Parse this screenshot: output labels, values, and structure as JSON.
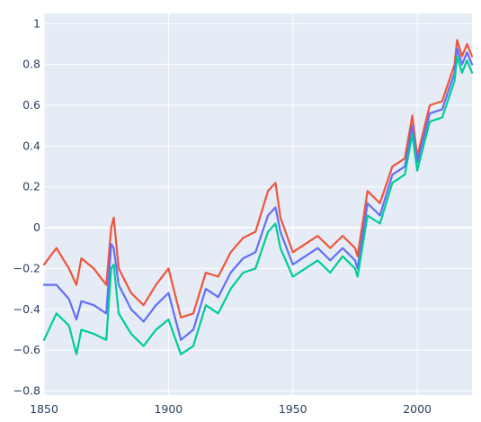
{
  "colors": {
    "plot_background": "#e5ecf6",
    "grid": "#ffffff",
    "tick_text": "#2a3f5f"
  },
  "chart_data": {
    "type": "line",
    "title": "",
    "xlabel": "",
    "ylabel": "",
    "xlim": [
      1850,
      2022
    ],
    "ylim": [
      -0.82,
      1.05
    ],
    "x_ticks": [
      1850,
      1900,
      1950,
      2000
    ],
    "x_tick_labels": [
      "1850",
      "1900",
      "1950",
      "2000"
    ],
    "y_ticks": [
      1,
      0.8,
      0.6,
      0.4,
      0.2,
      0,
      -0.2,
      -0.4,
      -0.6,
      -0.8
    ],
    "y_tick_labels": [
      "1",
      "0.8",
      "0.6",
      "0.4",
      "0.2",
      "0",
      "−0.2",
      "−0.4",
      "−0.6",
      "−0.8"
    ],
    "grid": true,
    "legend": "none",
    "x": [
      1850,
      1855,
      1860,
      1863,
      1865,
      1870,
      1875,
      1877,
      1878,
      1880,
      1885,
      1890,
      1895,
      1900,
      1905,
      1910,
      1915,
      1920,
      1925,
      1930,
      1935,
      1940,
      1943,
      1945,
      1950,
      1955,
      1960,
      1965,
      1970,
      1975,
      1976,
      1980,
      1985,
      1990,
      1995,
      1998,
      2000,
      2005,
      2010,
      2015,
      2016,
      2018,
      2020,
      2022
    ],
    "series": [
      {
        "color": "#ef553b",
        "values": [
          -0.18,
          -0.1,
          -0.2,
          -0.28,
          -0.15,
          -0.2,
          -0.28,
          0.0,
          0.05,
          -0.2,
          -0.32,
          -0.38,
          -0.28,
          -0.2,
          -0.44,
          -0.42,
          -0.22,
          -0.24,
          -0.12,
          -0.05,
          -0.02,
          0.18,
          0.22,
          0.05,
          -0.12,
          -0.08,
          -0.04,
          -0.1,
          -0.04,
          -0.1,
          -0.14,
          0.18,
          0.12,
          0.3,
          0.34,
          0.55,
          0.35,
          0.6,
          0.62,
          0.8,
          0.92,
          0.84,
          0.9,
          0.84
        ]
      },
      {
        "color": "#636efa",
        "values": [
          -0.28,
          -0.28,
          -0.35,
          -0.45,
          -0.36,
          -0.38,
          -0.42,
          -0.08,
          -0.1,
          -0.28,
          -0.4,
          -0.46,
          -0.38,
          -0.32,
          -0.55,
          -0.5,
          -0.3,
          -0.34,
          -0.22,
          -0.15,
          -0.12,
          0.06,
          0.1,
          -0.02,
          -0.18,
          -0.14,
          -0.1,
          -0.16,
          -0.1,
          -0.16,
          -0.2,
          0.12,
          0.06,
          0.26,
          0.3,
          0.5,
          0.32,
          0.56,
          0.58,
          0.76,
          0.88,
          0.8,
          0.86,
          0.8
        ]
      },
      {
        "color": "#00cc96",
        "values": [
          -0.55,
          -0.42,
          -0.48,
          -0.62,
          -0.5,
          -0.52,
          -0.55,
          -0.2,
          -0.18,
          -0.42,
          -0.52,
          -0.58,
          -0.5,
          -0.45,
          -0.62,
          -0.58,
          -0.38,
          -0.42,
          -0.3,
          -0.22,
          -0.2,
          -0.02,
          0.02,
          -0.1,
          -0.24,
          -0.2,
          -0.16,
          -0.22,
          -0.14,
          -0.2,
          -0.24,
          0.06,
          0.02,
          0.22,
          0.26,
          0.46,
          0.28,
          0.52,
          0.54,
          0.72,
          0.84,
          0.76,
          0.82,
          0.76
        ]
      }
    ]
  }
}
